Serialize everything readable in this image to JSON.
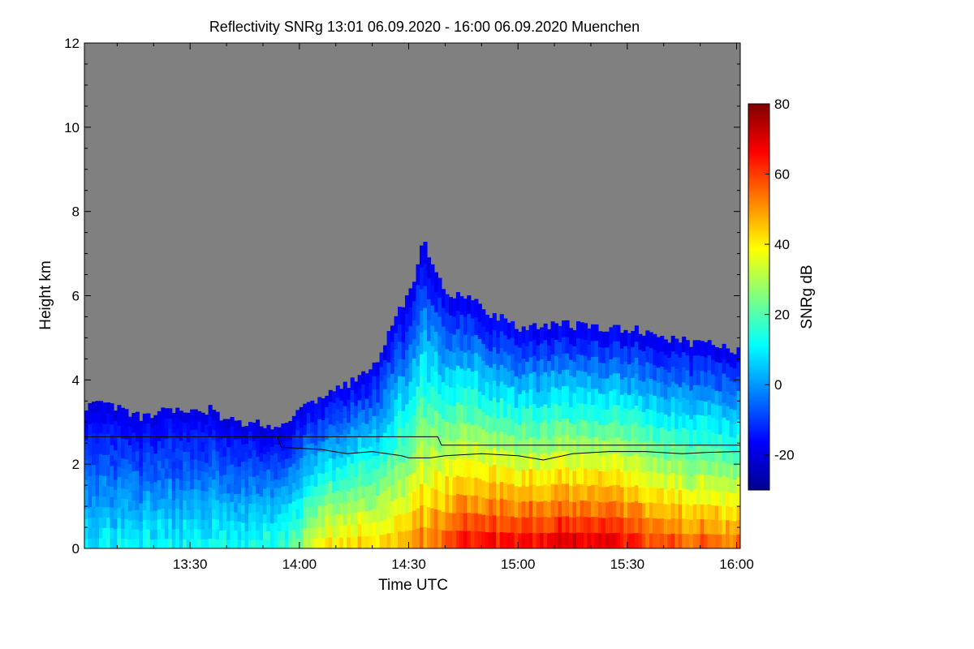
{
  "chart_data": {
    "type": "heatmap",
    "title": "Reflectivity SNRg   13:01 06.09.2020 - 16:00 06.09.2020 Muenchen",
    "xlabel": "Time UTC",
    "ylabel": "Height km",
    "x_range_minutes_utc": [
      781,
      961
    ],
    "ylim": [
      0,
      12
    ],
    "x_ticks": [
      {
        "label": "13:30",
        "minute": 810
      },
      {
        "label": "14:00",
        "minute": 840
      },
      {
        "label": "14:30",
        "minute": 870
      },
      {
        "label": "15:00",
        "minute": 900
      },
      {
        "label": "15:30",
        "minute": 930
      },
      {
        "label": "16:00",
        "minute": 960
      }
    ],
    "y_ticks": [
      0,
      2,
      4,
      6,
      8,
      10,
      12
    ],
    "colorbar": {
      "label": "SNRg dB",
      "range": [
        -30,
        80
      ],
      "ticks": [
        -20,
        0,
        20,
        40,
        60,
        80
      ],
      "colormap": [
        "#00008f",
        "#0000ff",
        "#0080ff",
        "#00ffff",
        "#80ff80",
        "#ffff00",
        "#ff8000",
        "#ff0000",
        "#800000"
      ]
    },
    "no_signal_color": "#808080",
    "echo_top_km": [
      [
        781,
        3.4
      ],
      [
        786,
        3.4
      ],
      [
        791,
        3.3
      ],
      [
        796,
        3.1
      ],
      [
        801,
        3.2
      ],
      [
        806,
        3.3
      ],
      [
        811,
        3.2
      ],
      [
        816,
        3.3
      ],
      [
        821,
        3.0
      ],
      [
        826,
        3.0
      ],
      [
        831,
        2.9
      ],
      [
        836,
        2.9
      ],
      [
        841,
        3.3
      ],
      [
        846,
        3.6
      ],
      [
        851,
        3.8
      ],
      [
        856,
        4.0
      ],
      [
        861,
        4.4
      ],
      [
        866,
        5.4
      ],
      [
        871,
        6.2
      ],
      [
        874,
        7.5
      ],
      [
        877,
        6.5
      ],
      [
        881,
        6.0
      ],
      [
        886,
        6.0
      ],
      [
        891,
        5.6
      ],
      [
        896,
        5.5
      ],
      [
        901,
        5.2
      ],
      [
        906,
        5.3
      ],
      [
        911,
        5.3
      ],
      [
        916,
        5.3
      ],
      [
        921,
        5.3
      ],
      [
        926,
        5.2
      ],
      [
        931,
        5.2
      ],
      [
        936,
        5.1
      ],
      [
        941,
        5.0
      ],
      [
        946,
        4.9
      ],
      [
        951,
        4.9
      ],
      [
        956,
        4.8
      ],
      [
        961,
        4.7
      ]
    ],
    "intensity_profile": [
      [
        781,
        10
      ],
      [
        806,
        12
      ],
      [
        826,
        15
      ],
      [
        836,
        18
      ],
      [
        846,
        42
      ],
      [
        856,
        45
      ],
      [
        866,
        46
      ],
      [
        876,
        55
      ],
      [
        886,
        65
      ],
      [
        896,
        68
      ],
      [
        906,
        70
      ],
      [
        916,
        72
      ],
      [
        926,
        68
      ],
      [
        936,
        62
      ],
      [
        946,
        58
      ],
      [
        956,
        55
      ],
      [
        961,
        54
      ]
    ],
    "line_1_km": [
      [
        781,
        2.65
      ],
      [
        858,
        2.65
      ],
      [
        878,
        2.65
      ],
      [
        879,
        2.45
      ],
      [
        961,
        2.45
      ]
    ],
    "line_2_km": [
      [
        834,
        2.65
      ],
      [
        835,
        2.4
      ],
      [
        846,
        2.35
      ],
      [
        853,
        2.25
      ],
      [
        860,
        2.3
      ],
      [
        868,
        2.2
      ],
      [
        870,
        2.15
      ],
      [
        876,
        2.15
      ],
      [
        880,
        2.2
      ],
      [
        890,
        2.25
      ],
      [
        900,
        2.2
      ],
      [
        907,
        2.1
      ],
      [
        915,
        2.25
      ],
      [
        925,
        2.3
      ],
      [
        935,
        2.3
      ],
      [
        945,
        2.25
      ],
      [
        952,
        2.28
      ],
      [
        961,
        2.3
      ]
    ]
  }
}
